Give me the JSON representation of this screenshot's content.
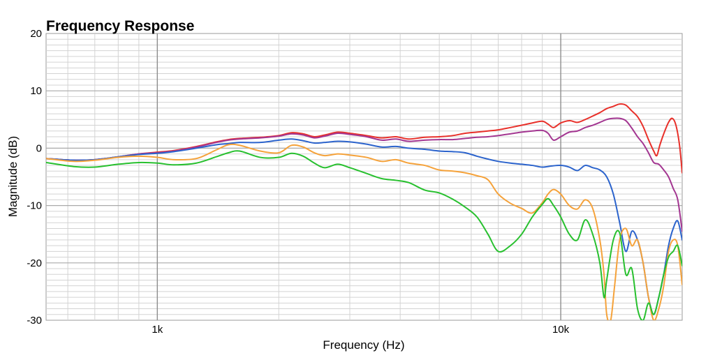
{
  "chart_data": {
    "type": "line",
    "title": "Frequency Response",
    "xlabel": "Frequency (Hz)",
    "ylabel": "Magnitude (dB)",
    "x_scale": "log",
    "xlim": [
      530,
      20000
    ],
    "ylim": [
      -30,
      20
    ],
    "x_ticks": [
      {
        "value": 1000,
        "label": "1k"
      },
      {
        "value": 10000,
        "label": "10k"
      }
    ],
    "y_ticks": [
      {
        "value": 20,
        "label": "20"
      },
      {
        "value": 10,
        "label": "10"
      },
      {
        "value": 0,
        "label": "0"
      },
      {
        "value": -10,
        "label": "-10"
      },
      {
        "value": -20,
        "label": "-20"
      },
      {
        "value": -30,
        "label": "-30"
      }
    ],
    "grid": true,
    "legend": "none",
    "series": [
      {
        "color": "#e8302a",
        "points": [
          [
            530,
            -1.8
          ],
          [
            620,
            -2.1
          ],
          [
            700,
            -2.0
          ],
          [
            800,
            -1.5
          ],
          [
            900,
            -1.0
          ],
          [
            1000,
            -0.7
          ],
          [
            1100,
            -0.4
          ],
          [
            1250,
            0.3
          ],
          [
            1400,
            1.1
          ],
          [
            1500,
            1.5
          ],
          [
            1600,
            1.7
          ],
          [
            1800,
            1.9
          ],
          [
            2000,
            2.2
          ],
          [
            2150,
            2.7
          ],
          [
            2300,
            2.5
          ],
          [
            2450,
            2.0
          ],
          [
            2600,
            2.3
          ],
          [
            2800,
            2.8
          ],
          [
            3000,
            2.6
          ],
          [
            3300,
            2.2
          ],
          [
            3600,
            1.8
          ],
          [
            3900,
            2.0
          ],
          [
            4200,
            1.6
          ],
          [
            4600,
            1.9
          ],
          [
            5000,
            2.0
          ],
          [
            5400,
            2.2
          ],
          [
            5800,
            2.6
          ],
          [
            6200,
            2.8
          ],
          [
            6600,
            3.0
          ],
          [
            7000,
            3.2
          ],
          [
            7500,
            3.6
          ],
          [
            8000,
            4.0
          ],
          [
            8500,
            4.4
          ],
          [
            9000,
            4.7
          ],
          [
            9300,
            4.2
          ],
          [
            9600,
            3.6
          ],
          [
            10000,
            4.4
          ],
          [
            10500,
            4.8
          ],
          [
            11000,
            4.5
          ],
          [
            11500,
            5.0
          ],
          [
            12000,
            5.6
          ],
          [
            12500,
            6.2
          ],
          [
            13000,
            6.9
          ],
          [
            13500,
            7.3
          ],
          [
            14000,
            7.7
          ],
          [
            14500,
            7.5
          ],
          [
            15000,
            6.5
          ],
          [
            15500,
            5.5
          ],
          [
            16000,
            3.8
          ],
          [
            16500,
            1.5
          ],
          [
            17000,
            -0.5
          ],
          [
            17300,
            -1.3
          ],
          [
            17600,
            0.5
          ],
          [
            18000,
            2.5
          ],
          [
            18500,
            4.5
          ],
          [
            18900,
            5.2
          ],
          [
            19300,
            4.0
          ],
          [
            19700,
            0.5
          ],
          [
            20000,
            -4.3
          ]
        ]
      },
      {
        "color": "#a33691",
        "points": [
          [
            530,
            -1.8
          ],
          [
            620,
            -2.1
          ],
          [
            700,
            -2.0
          ],
          [
            800,
            -1.5
          ],
          [
            900,
            -1.0
          ],
          [
            1000,
            -0.8
          ],
          [
            1100,
            -0.5
          ],
          [
            1250,
            0.2
          ],
          [
            1400,
            1.0
          ],
          [
            1500,
            1.4
          ],
          [
            1600,
            1.6
          ],
          [
            1800,
            1.8
          ],
          [
            2000,
            2.1
          ],
          [
            2150,
            2.5
          ],
          [
            2300,
            2.3
          ],
          [
            2450,
            1.8
          ],
          [
            2600,
            2.1
          ],
          [
            2800,
            2.6
          ],
          [
            3000,
            2.4
          ],
          [
            3300,
            2.0
          ],
          [
            3600,
            1.4
          ],
          [
            3900,
            1.6
          ],
          [
            4200,
            1.2
          ],
          [
            4600,
            1.4
          ],
          [
            5000,
            1.5
          ],
          [
            5400,
            1.5
          ],
          [
            5800,
            1.7
          ],
          [
            6200,
            1.9
          ],
          [
            6600,
            2.0
          ],
          [
            7000,
            2.2
          ],
          [
            7500,
            2.5
          ],
          [
            8000,
            2.8
          ],
          [
            8500,
            3.0
          ],
          [
            9000,
            3.1
          ],
          [
            9300,
            2.6
          ],
          [
            9600,
            1.4
          ],
          [
            10000,
            2.0
          ],
          [
            10500,
            2.8
          ],
          [
            11000,
            3.0
          ],
          [
            11500,
            3.6
          ],
          [
            12000,
            4.0
          ],
          [
            12500,
            4.5
          ],
          [
            13000,
            5.0
          ],
          [
            13500,
            5.2
          ],
          [
            14000,
            5.2
          ],
          [
            14500,
            4.8
          ],
          [
            15000,
            3.5
          ],
          [
            15500,
            2.0
          ],
          [
            16000,
            0.8
          ],
          [
            16500,
            -0.8
          ],
          [
            17000,
            -2.5
          ],
          [
            17500,
            -2.8
          ],
          [
            18000,
            -3.8
          ],
          [
            18500,
            -5.0
          ],
          [
            19000,
            -7.0
          ],
          [
            19500,
            -9.0
          ],
          [
            20000,
            -14.5
          ]
        ]
      },
      {
        "color": "#2b63cc",
        "points": [
          [
            530,
            -1.8
          ],
          [
            620,
            -2.1
          ],
          [
            700,
            -2.0
          ],
          [
            800,
            -1.5
          ],
          [
            900,
            -1.1
          ],
          [
            1000,
            -0.9
          ],
          [
            1100,
            -0.6
          ],
          [
            1250,
            0.0
          ],
          [
            1400,
            0.6
          ],
          [
            1500,
            0.8
          ],
          [
            1600,
            1.0
          ],
          [
            1800,
            1.0
          ],
          [
            2000,
            1.4
          ],
          [
            2150,
            1.6
          ],
          [
            2300,
            1.3
          ],
          [
            2450,
            0.9
          ],
          [
            2600,
            1.0
          ],
          [
            2800,
            1.2
          ],
          [
            3000,
            1.1
          ],
          [
            3300,
            0.7
          ],
          [
            3600,
            0.2
          ],
          [
            3900,
            0.3
          ],
          [
            4200,
            0.0
          ],
          [
            4600,
            -0.2
          ],
          [
            5000,
            -0.5
          ],
          [
            5400,
            -0.6
          ],
          [
            5800,
            -0.8
          ],
          [
            6200,
            -1.4
          ],
          [
            6600,
            -1.9
          ],
          [
            7000,
            -2.3
          ],
          [
            7500,
            -2.6
          ],
          [
            8000,
            -2.8
          ],
          [
            8500,
            -3.0
          ],
          [
            9000,
            -3.3
          ],
          [
            9500,
            -3.1
          ],
          [
            10000,
            -3.0
          ],
          [
            10500,
            -3.3
          ],
          [
            11000,
            -3.9
          ],
          [
            11500,
            -3.0
          ],
          [
            12000,
            -3.4
          ],
          [
            12500,
            -3.8
          ],
          [
            13000,
            -5.0
          ],
          [
            13500,
            -8.0
          ],
          [
            14000,
            -13.0
          ],
          [
            14500,
            -18.0
          ],
          [
            15000,
            -14.5
          ],
          [
            15500,
            -16.0
          ],
          [
            16000,
            -20.0
          ],
          [
            16500,
            -26.0
          ],
          [
            17000,
            -29.0
          ],
          [
            17500,
            -26.0
          ],
          [
            18000,
            -22.0
          ],
          [
            18500,
            -17.0
          ],
          [
            19000,
            -14.0
          ],
          [
            19500,
            -12.7
          ],
          [
            20000,
            -16.0
          ]
        ]
      },
      {
        "color": "#f5a23a",
        "points": [
          [
            530,
            -1.8
          ],
          [
            620,
            -2.3
          ],
          [
            700,
            -2.1
          ],
          [
            800,
            -1.6
          ],
          [
            900,
            -1.4
          ],
          [
            1000,
            -1.6
          ],
          [
            1100,
            -2.0
          ],
          [
            1250,
            -1.8
          ],
          [
            1400,
            -0.3
          ],
          [
            1500,
            0.6
          ],
          [
            1600,
            0.5
          ],
          [
            1800,
            -0.5
          ],
          [
            2000,
            -0.8
          ],
          [
            2150,
            0.5
          ],
          [
            2300,
            0.2
          ],
          [
            2450,
            -0.8
          ],
          [
            2600,
            -1.3
          ],
          [
            2800,
            -1.0
          ],
          [
            3000,
            -1.2
          ],
          [
            3300,
            -1.6
          ],
          [
            3600,
            -2.3
          ],
          [
            3900,
            -2.0
          ],
          [
            4200,
            -2.6
          ],
          [
            4600,
            -3.0
          ],
          [
            5000,
            -3.8
          ],
          [
            5400,
            -4.0
          ],
          [
            5800,
            -4.3
          ],
          [
            6200,
            -4.8
          ],
          [
            6600,
            -5.5
          ],
          [
            7000,
            -8.0
          ],
          [
            7500,
            -9.6
          ],
          [
            8000,
            -10.5
          ],
          [
            8500,
            -11.3
          ],
          [
            9000,
            -9.5
          ],
          [
            9300,
            -8.0
          ],
          [
            9600,
            -7.2
          ],
          [
            10000,
            -8.0
          ],
          [
            10500,
            -10.0
          ],
          [
            11000,
            -10.6
          ],
          [
            11500,
            -9.0
          ],
          [
            12000,
            -10.5
          ],
          [
            12500,
            -16.0
          ],
          [
            12800,
            -22.0
          ],
          [
            13000,
            -29.0
          ],
          [
            13300,
            -30.0
          ],
          [
            13600,
            -24.0
          ],
          [
            14000,
            -16.0
          ],
          [
            14500,
            -14.0
          ],
          [
            15000,
            -17.0
          ],
          [
            15500,
            -16.0
          ],
          [
            16000,
            -20.0
          ],
          [
            16500,
            -26.0
          ],
          [
            17000,
            -30.0
          ],
          [
            17500,
            -28.0
          ],
          [
            18000,
            -24.0
          ],
          [
            18500,
            -18.0
          ],
          [
            19000,
            -16.0
          ],
          [
            19500,
            -17.0
          ],
          [
            20000,
            -23.8
          ]
        ]
      },
      {
        "color": "#27c02e",
        "points": [
          [
            530,
            -2.5
          ],
          [
            620,
            -3.2
          ],
          [
            700,
            -3.3
          ],
          [
            800,
            -2.8
          ],
          [
            900,
            -2.5
          ],
          [
            1000,
            -2.6
          ],
          [
            1100,
            -2.9
          ],
          [
            1250,
            -2.6
          ],
          [
            1400,
            -1.5
          ],
          [
            1500,
            -0.8
          ],
          [
            1600,
            -0.5
          ],
          [
            1800,
            -1.6
          ],
          [
            2000,
            -1.6
          ],
          [
            2150,
            -0.9
          ],
          [
            2300,
            -1.4
          ],
          [
            2450,
            -2.6
          ],
          [
            2600,
            -3.4
          ],
          [
            2800,
            -2.8
          ],
          [
            3000,
            -3.4
          ],
          [
            3300,
            -4.4
          ],
          [
            3600,
            -5.3
          ],
          [
            3900,
            -5.6
          ],
          [
            4200,
            -6.0
          ],
          [
            4600,
            -7.3
          ],
          [
            5000,
            -7.8
          ],
          [
            5400,
            -8.9
          ],
          [
            5800,
            -10.3
          ],
          [
            6200,
            -12.0
          ],
          [
            6600,
            -15.0
          ],
          [
            7000,
            -18.0
          ],
          [
            7500,
            -17.0
          ],
          [
            8000,
            -15.0
          ],
          [
            8500,
            -12.0
          ],
          [
            9000,
            -9.8
          ],
          [
            9300,
            -8.8
          ],
          [
            9600,
            -10.0
          ],
          [
            10000,
            -12.0
          ],
          [
            10500,
            -15.0
          ],
          [
            11000,
            -16.0
          ],
          [
            11500,
            -12.5
          ],
          [
            12000,
            -15.0
          ],
          [
            12500,
            -20.0
          ],
          [
            12800,
            -26.0
          ],
          [
            13000,
            -23.0
          ],
          [
            13500,
            -16.0
          ],
          [
            14000,
            -14.8
          ],
          [
            14500,
            -22.0
          ],
          [
            15000,
            -21.0
          ],
          [
            15500,
            -28.0
          ],
          [
            16000,
            -30.0
          ],
          [
            16500,
            -27.0
          ],
          [
            17000,
            -29.0
          ],
          [
            17500,
            -26.0
          ],
          [
            18000,
            -22.0
          ],
          [
            18500,
            -19.0
          ],
          [
            19000,
            -18.0
          ],
          [
            19500,
            -17.0
          ],
          [
            20000,
            -20.5
          ]
        ]
      }
    ]
  }
}
